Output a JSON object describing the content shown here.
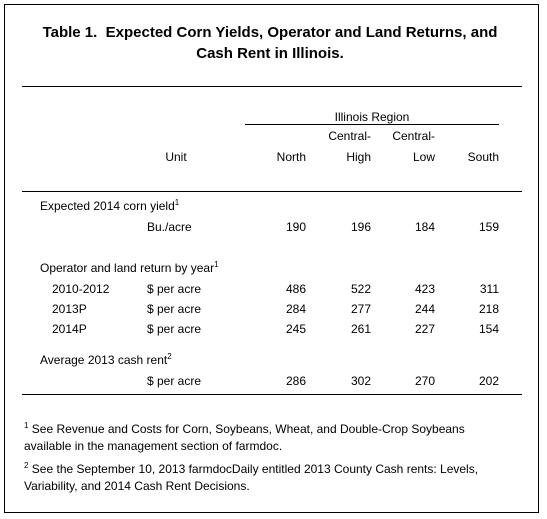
{
  "title": "Table 1.  Expected Corn Yields, Operator and Land Returns, and Cash Rent in Illinois.",
  "table": {
    "group_header": "Illinois Region",
    "unit_header": "Unit",
    "columns": [
      [
        "North"
      ],
      [
        "Central-",
        "High"
      ],
      [
        "Central-",
        "Low"
      ],
      [
        "South"
      ]
    ],
    "sections": [
      {
        "label": "Expected 2014 corn yield",
        "note": "1",
        "rows": [
          {
            "unit": "Bu./acre",
            "values": [
              190,
              196,
              184,
              159
            ]
          }
        ]
      },
      {
        "label": "Operator and land return by year",
        "note": "1",
        "rows": [
          {
            "label": "2010-2012",
            "unit": "$ per acre",
            "values": [
              486,
              522,
              423,
              311
            ]
          },
          {
            "label": "2013P",
            "unit": "$ per acre",
            "values": [
              284,
              277,
              244,
              218
            ]
          },
          {
            "label": "2014P",
            "unit": "$ per acre",
            "values": [
              245,
              261,
              227,
              154
            ]
          }
        ]
      },
      {
        "label": "Average 2013 cash rent",
        "note": "2",
        "rows": [
          {
            "unit": "$ per acre",
            "values": [
              286,
              302,
              270,
              202
            ]
          }
        ]
      }
    ]
  },
  "footnotes": [
    {
      "mark": "1",
      "text": "See Revenue and Costs for Corn, Soybeans, Wheat, and Double-Crop Soybeans available in the management section of farmdoc."
    },
    {
      "mark": "2",
      "text": "See the September 10, 2013 farmdocDaily entitled 2013 County Cash rents:  Levels, Variability, and 2014 Cash Rent Decisions."
    }
  ]
}
